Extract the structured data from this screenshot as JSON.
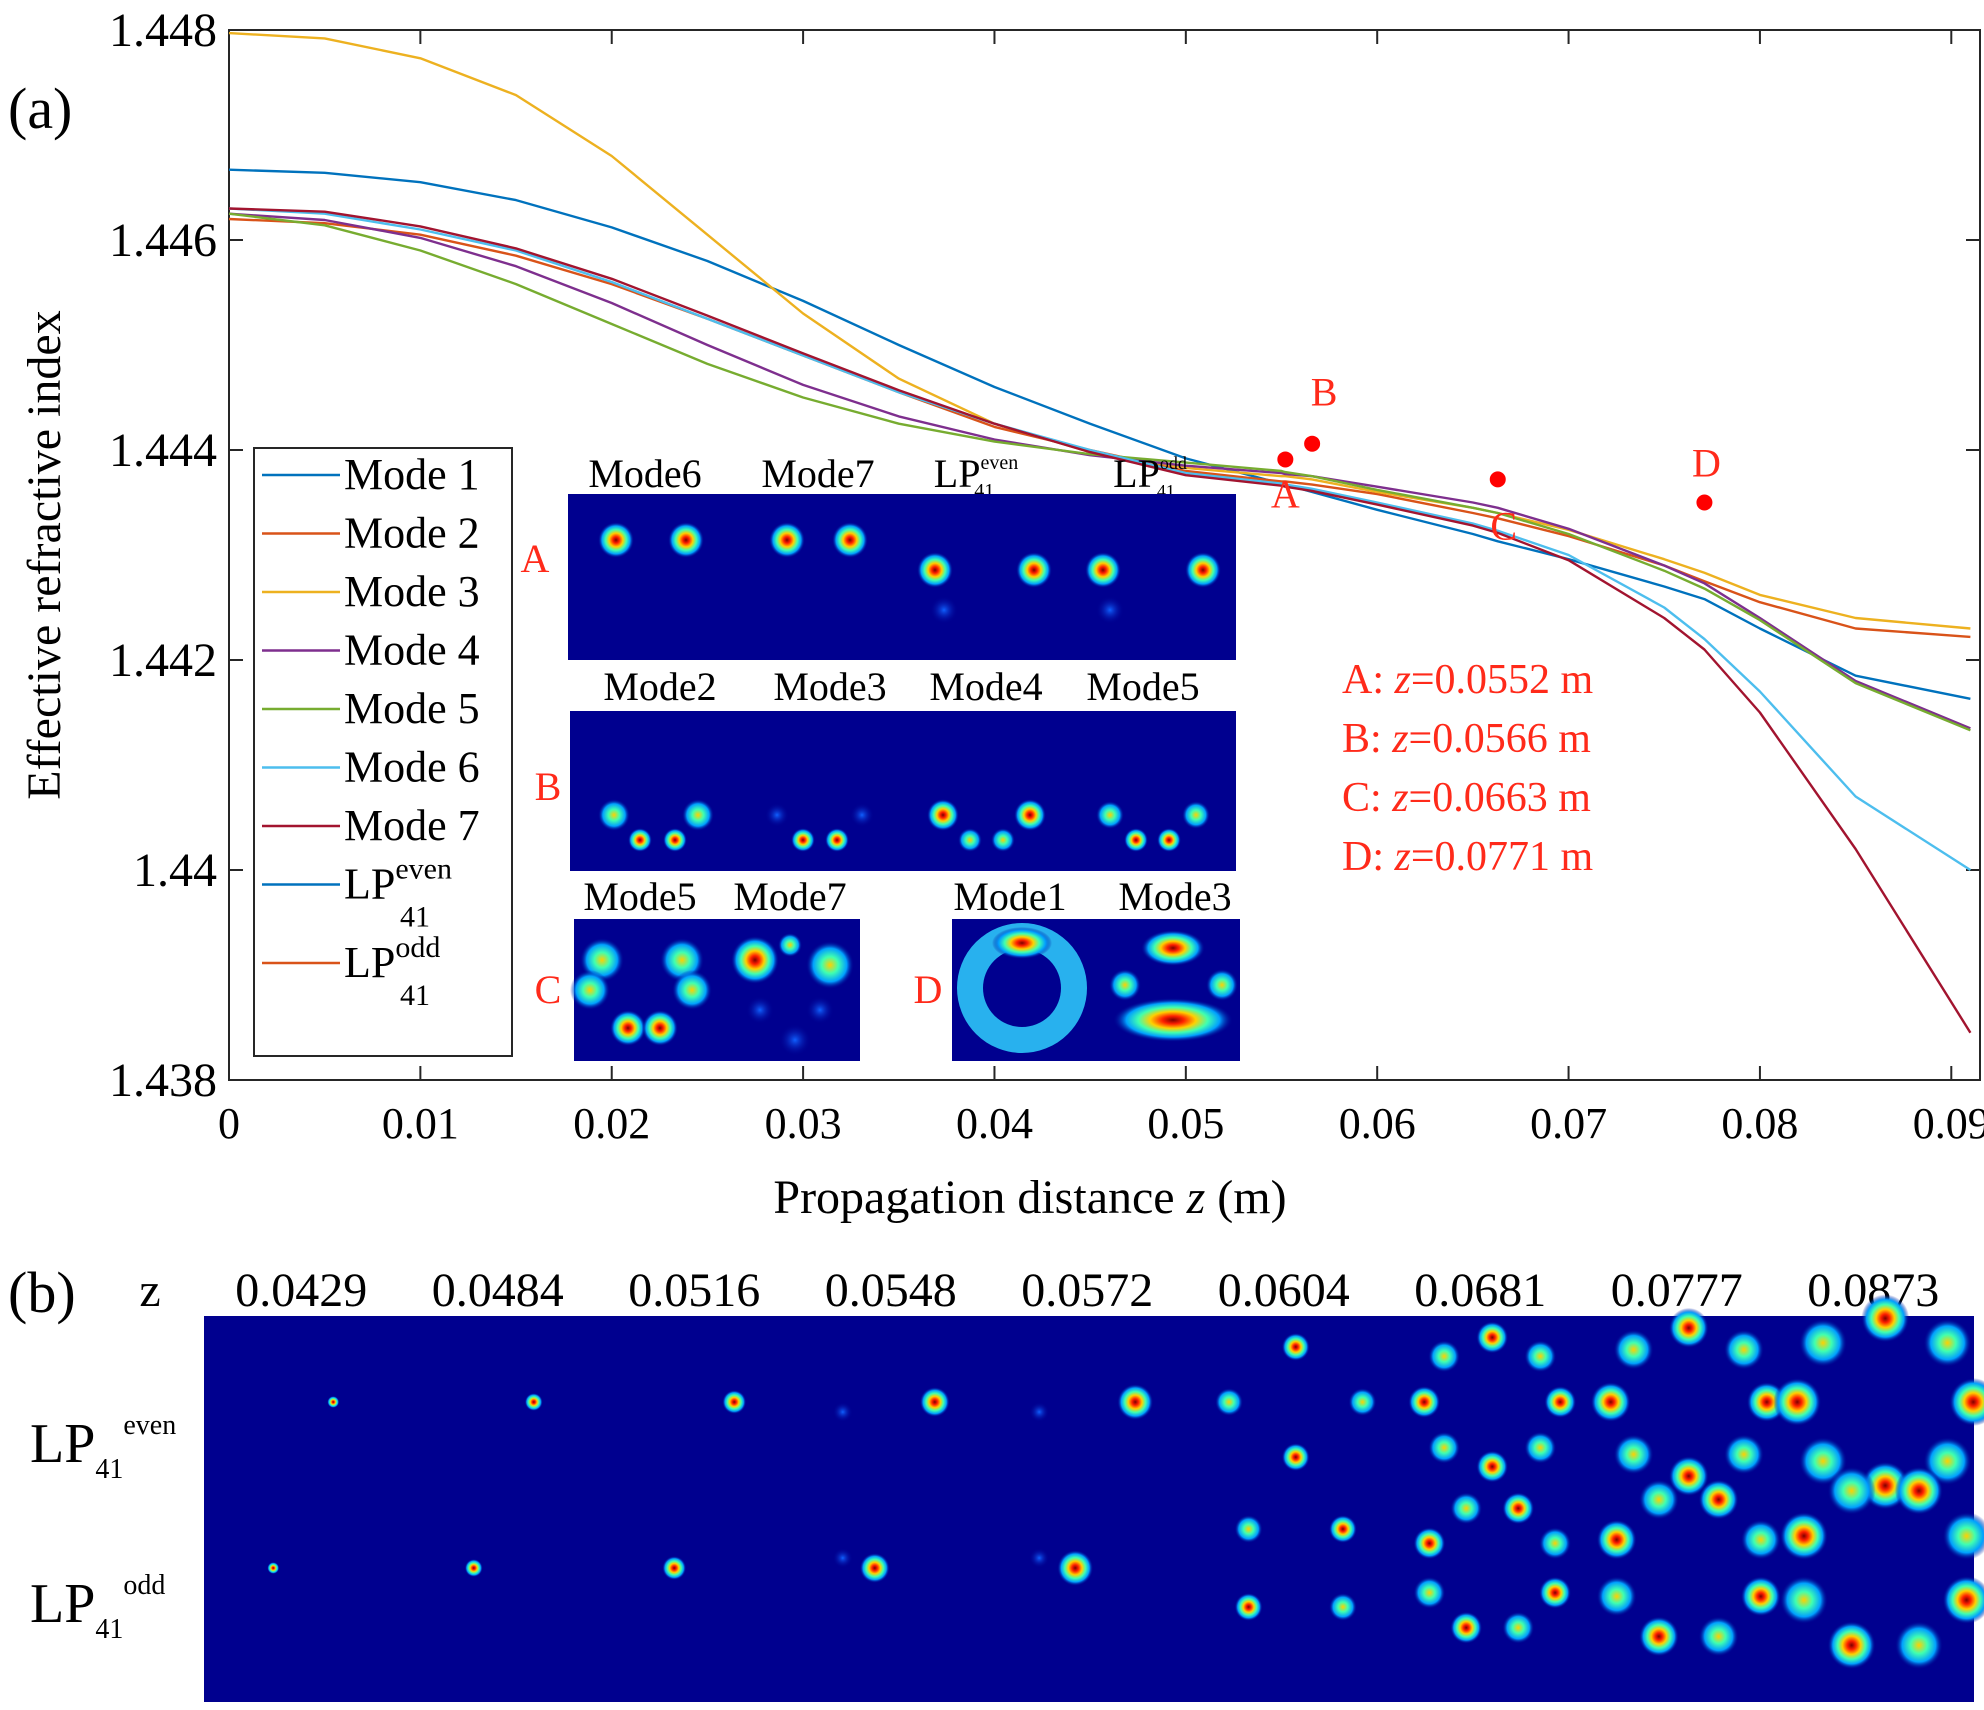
{
  "panel_labels": {
    "a": "(a)",
    "b": "(b)"
  },
  "chart_data": {
    "type": "line",
    "xlabel": "Propagation distance",
    "xlabel_var": "z",
    "xlabel_unit": "(m)",
    "ylabel": "Effective refractive index",
    "xlim": [
      0,
      0.0915
    ],
    "ylim": [
      1.438,
      1.448
    ],
    "xticks": [
      "0",
      "0.01",
      "0.02",
      "0.03",
      "0.04",
      "0.05",
      "0.06",
      "0.07",
      "0.08",
      "0.09"
    ],
    "yticks": [
      "1.438",
      "1.44",
      "1.442",
      "1.444",
      "1.446",
      "1.448"
    ],
    "legend_position": "left",
    "x": [
      0,
      0.005,
      0.01,
      0.015,
      0.02,
      0.025,
      0.03,
      0.035,
      0.04,
      0.045,
      0.05,
      0.055,
      0.0552,
      0.0566,
      0.06,
      0.065,
      0.0663,
      0.07,
      0.075,
      0.0771,
      0.08,
      0.085,
      0.091
    ],
    "series": [
      {
        "name": "Mode 1",
        "color": "#0072BD",
        "values": [
          1.44667,
          1.44664,
          1.44655,
          1.44638,
          1.44612,
          1.4458,
          1.44542,
          1.445,
          1.4446,
          1.44425,
          1.44392,
          1.44368,
          1.44367,
          1.4436,
          1.44343,
          1.4432,
          1.44313,
          1.44296,
          1.4427,
          1.44258,
          1.4423,
          1.44185,
          1.44163
        ]
      },
      {
        "name": "Mode 2",
        "color": "#D95319",
        "values": [
          1.4462,
          1.44616,
          1.44605,
          1.44585,
          1.44558,
          1.44525,
          1.4449,
          1.44455,
          1.44422,
          1.444,
          1.4438,
          1.4437,
          1.4437,
          1.44367,
          1.44358,
          1.4434,
          1.44335,
          1.44318,
          1.4429,
          1.44275,
          1.44255,
          1.4423,
          1.44222
        ]
      },
      {
        "name": "Mode 3",
        "color": "#EDB120",
        "values": [
          1.44797,
          1.44792,
          1.44773,
          1.44738,
          1.4468,
          1.44605,
          1.4453,
          1.44468,
          1.44425,
          1.44398,
          1.44383,
          1.44375,
          1.44375,
          1.44372,
          1.4436,
          1.44345,
          1.4434,
          1.44324,
          1.44296,
          1.44283,
          1.44262,
          1.4424,
          1.4423
        ]
      },
      {
        "name": "Mode 4",
        "color": "#7E2F8E",
        "values": [
          1.44625,
          1.44619,
          1.44602,
          1.44575,
          1.4454,
          1.445,
          1.44462,
          1.44432,
          1.4441,
          1.44395,
          1.44385,
          1.44378,
          1.44377,
          1.44375,
          1.44365,
          1.4435,
          1.44345,
          1.44325,
          1.4429,
          1.44273,
          1.4424,
          1.4418,
          1.44135
        ]
      },
      {
        "name": "Mode 5",
        "color": "#77AC30",
        "values": [
          1.44625,
          1.44614,
          1.4459,
          1.44558,
          1.4452,
          1.44482,
          1.4445,
          1.44425,
          1.44408,
          1.44396,
          1.44388,
          1.4438,
          1.44379,
          1.44375,
          1.44362,
          1.44345,
          1.4434,
          1.4432,
          1.44285,
          1.44268,
          1.44238,
          1.44178,
          1.44133
        ]
      },
      {
        "name": "Mode 6",
        "color": "#4DBEEE",
        "values": [
          1.4463,
          1.44625,
          1.4461,
          1.4459,
          1.4456,
          1.44525,
          1.4449,
          1.44455,
          1.44425,
          1.444,
          1.44378,
          1.44368,
          1.44367,
          1.44363,
          1.4435,
          1.4433,
          1.44323,
          1.443,
          1.4425,
          1.4422,
          1.4417,
          1.4407,
          1.44
        ]
      },
      {
        "name": "Mode 7",
        "color": "#A2142F",
        "values": [
          1.4463,
          1.44627,
          1.44613,
          1.44592,
          1.44563,
          1.44528,
          1.44492,
          1.44457,
          1.44425,
          1.44398,
          1.44376,
          1.44366,
          1.44365,
          1.44361,
          1.44348,
          1.44328,
          1.44321,
          1.44295,
          1.4424,
          1.4421,
          1.4415,
          1.4402,
          1.43845
        ]
      }
    ],
    "legend": [
      {
        "label": "Mode 1",
        "color": "#0072BD"
      },
      {
        "label": "Mode 2",
        "color": "#D95319"
      },
      {
        "label": "Mode 3",
        "color": "#EDB120"
      },
      {
        "label": "Mode 4",
        "color": "#7E2F8E"
      },
      {
        "label": "Mode 5",
        "color": "#77AC30"
      },
      {
        "label": "Mode 6",
        "color": "#4DBEEE"
      },
      {
        "label": "Mode 7",
        "color": "#A2142F"
      },
      {
        "label": "LP",
        "sup": "even",
        "sub": "41",
        "color": "#0072BD"
      },
      {
        "label": "LP",
        "sup": "odd",
        "sub": "41",
        "color": "#D95319"
      }
    ],
    "marked_points": [
      {
        "label": "A",
        "x": 0.0552,
        "y": 1.44391,
        "note_prefix": "A: ",
        "note_var": "z",
        "note_value": "=0.0552 m"
      },
      {
        "label": "B",
        "x": 0.0566,
        "y": 1.44406,
        "note_prefix": "B: ",
        "note_var": "z",
        "note_value": "=0.0566 m"
      },
      {
        "label": "C",
        "x": 0.0663,
        "y": 1.44372,
        "note_prefix": "C: ",
        "note_var": "z",
        "note_value": "=0.0663 m"
      },
      {
        "label": "D",
        "x": 0.0771,
        "y": 1.4435,
        "note_prefix": "D: ",
        "note_var": "z",
        "note_value": "=0.0771 m"
      }
    ],
    "marker_color": "#FF0000"
  },
  "insets": {
    "A": {
      "row_label": "A",
      "titles": [
        "Mode6",
        "Mode7",
        "LP",
        "LP"
      ],
      "title_sups": [
        "",
        "",
        "even",
        "odd"
      ],
      "title_subs": [
        "",
        "",
        "41",
        "41"
      ]
    },
    "B": {
      "row_label": "B",
      "titles": [
        "Mode2",
        "Mode3",
        "Mode4",
        "Mode5"
      ]
    },
    "C": {
      "row_label": "C",
      "titles": [
        "Mode5",
        "Mode7"
      ]
    },
    "D": {
      "row_label": "D",
      "titles": [
        "Mode1",
        "Mode3"
      ]
    }
  },
  "panel_b": {
    "z_label": "z",
    "z_values": [
      "0.0429",
      "0.0484",
      "0.0516",
      "0.0548",
      "0.0572",
      "0.0604",
      "0.0681",
      "0.0777",
      "0.0873"
    ],
    "rows": [
      {
        "label": "LP",
        "sub": "41",
        "sup": "even"
      },
      {
        "label": "LP",
        "sub": "41",
        "sup": "odd"
      }
    ]
  }
}
